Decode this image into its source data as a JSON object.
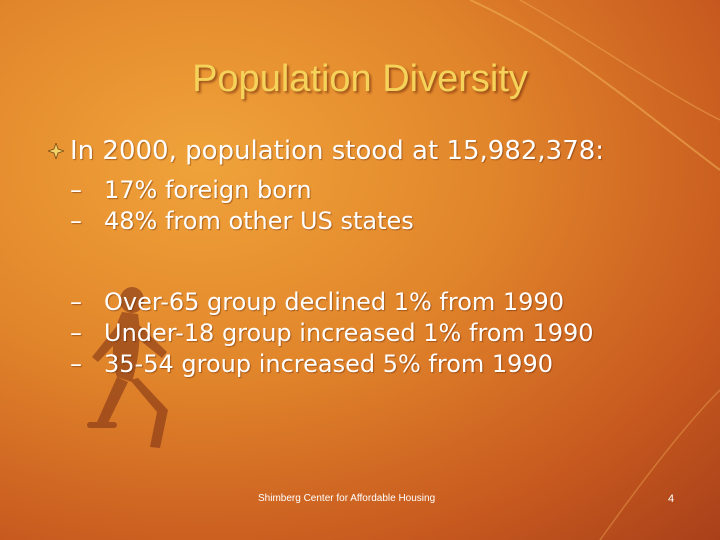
{
  "slide": {
    "title": "Population Diversity",
    "main_bullet": "In 2000, population stood at 15,982,378:",
    "sub_bullets_group1": [
      "17% foreign born",
      "48% from other US states"
    ],
    "sub_bullets_group2": [
      "Over-65 group declined 1% from 1990",
      "Under-18 group increased 1% from 1990",
      "35-54 group increased 5% from 1990"
    ],
    "dash_symbol": "–",
    "footer": "Shimberg Center for Affordable Housing",
    "page_number": "4",
    "colors": {
      "title": "#f5d25a",
      "text": "#ffffff",
      "background": "#e1852b"
    },
    "icons": {
      "bullet": "diamond-bullet-icon",
      "decoration": "sprinter-figure"
    }
  }
}
